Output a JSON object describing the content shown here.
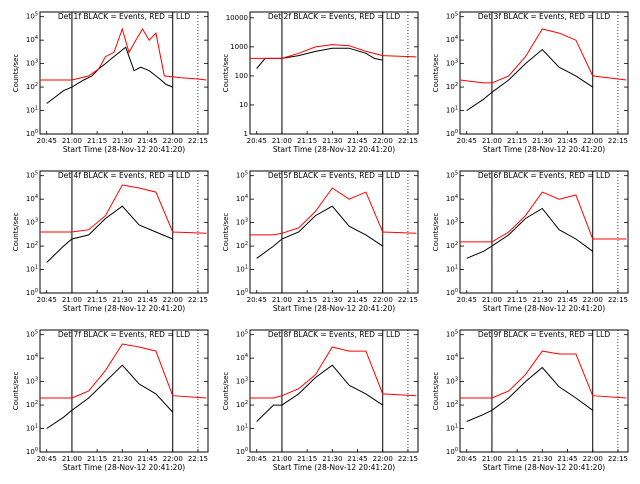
{
  "chart_data": [
    {
      "type": "line",
      "title": "Det 1f BLACK = Events, RED = LLD",
      "xlabel": "Start Time (28-Nov-12 20:41:20)",
      "ylabel": "Counts/sec",
      "x_ticks": [
        "20:45",
        "21:00",
        "21:15",
        "21:30",
        "21:45",
        "22:00",
        "22:15"
      ],
      "y_ticks": [
        "10^0",
        "10^1",
        "10^2",
        "10^3",
        "10^4",
        "10^5"
      ],
      "ylim_exp": [
        0,
        5.2
      ],
      "yscale": "log",
      "vlines_dotted": [
        "21:00",
        "22:15"
      ],
      "vlines_solid": [
        "21:00",
        "22:00"
      ],
      "series": [
        {
          "name": "Events",
          "color": "#000000",
          "x": [
            "20:45",
            "20:55",
            "21:00",
            "21:07",
            "21:12",
            "21:16",
            "21:20",
            "21:25",
            "21:32",
            "21:37",
            "21:41",
            "21:46",
            "21:50",
            "21:53",
            "21:56",
            "22:00"
          ],
          "y": [
            20,
            70,
            100,
            200,
            300,
            600,
            1000,
            2000,
            5000,
            500,
            700,
            500,
            300,
            200,
            130,
            100
          ]
        },
        {
          "name": "LLD",
          "color": "#ff0000",
          "x": [
            "20:41",
            "20:55",
            "21:00",
            "21:10",
            "21:16",
            "21:20",
            "21:25",
            "21:30",
            "21:34",
            "21:38",
            "21:42",
            "21:46",
            "21:50",
            "21:55",
            "22:05",
            "22:15",
            "22:20"
          ],
          "y": [
            200,
            200,
            200,
            300,
            600,
            2000,
            3000,
            30000,
            3000,
            10000,
            30000,
            10000,
            20000,
            300,
            250,
            220,
            200
          ]
        }
      ]
    },
    {
      "type": "line",
      "title": "Det 2f BLACK = Events, RED = LLD",
      "xlabel": "Start Time (28-Nov-12 20:41:20)",
      "ylabel": "Counts/sec",
      "x_ticks": [
        "20:45",
        "21:00",
        "21:15",
        "21:30",
        "21:45",
        "22:00",
        "22:15"
      ],
      "y_ticks": [
        "1",
        "10",
        "100",
        "1000",
        "10000"
      ],
      "ylim_exp": [
        0,
        4.2
      ],
      "yscale": "log",
      "vlines_dotted": [
        "21:00",
        "22:15"
      ],
      "vlines_solid": [
        "21:00",
        "22:00"
      ],
      "series": [
        {
          "name": "Events",
          "color": "#000000",
          "x": [
            "20:45",
            "20:50",
            "21:00",
            "21:10",
            "21:20",
            "21:30",
            "21:40",
            "21:50",
            "21:55",
            "22:00"
          ],
          "y": [
            180,
            400,
            400,
            500,
            700,
            900,
            900,
            600,
            400,
            350
          ]
        },
        {
          "name": "LLD",
          "color": "#ff0000",
          "x": [
            "20:41",
            "20:55",
            "21:00",
            "21:10",
            "21:20",
            "21:30",
            "21:40",
            "21:50",
            "22:00",
            "22:20"
          ],
          "y": [
            400,
            400,
            400,
            600,
            1000,
            1200,
            1100,
            700,
            500,
            450
          ]
        }
      ]
    },
    {
      "type": "line",
      "title": "Det 3f BLACK = Events, RED = LLD",
      "xlabel": "Start Time (28-Nov-12 20:41:20)",
      "ylabel": "Counts/sec",
      "x_ticks": [
        "20:45",
        "21:00",
        "21:15",
        "21:30",
        "21:45",
        "22:00",
        "22:15"
      ],
      "y_ticks": [
        "10^0",
        "10^1",
        "10^2",
        "10^3",
        "10^4",
        "10^5"
      ],
      "ylim_exp": [
        0,
        5.2
      ],
      "yscale": "log",
      "vlines_dotted": [
        "21:00",
        "22:15"
      ],
      "vlines_solid": [
        "21:00",
        "22:00"
      ],
      "series": [
        {
          "name": "Events",
          "color": "#000000",
          "x": [
            "20:45",
            "20:55",
            "21:00",
            "21:10",
            "21:20",
            "21:30",
            "21:40",
            "21:50",
            "22:00"
          ],
          "y": [
            10,
            30,
            60,
            200,
            1000,
            4000,
            700,
            300,
            100
          ]
        },
        {
          "name": "LLD",
          "color": "#ff0000",
          "x": [
            "20:41",
            "20:55",
            "21:00",
            "21:10",
            "21:20",
            "21:30",
            "21:40",
            "21:50",
            "22:00",
            "22:20"
          ],
          "y": [
            200,
            150,
            150,
            300,
            2000,
            30000,
            20000,
            10000,
            300,
            200
          ]
        }
      ]
    },
    {
      "type": "line",
      "title": "Det 4f BLACK = Events, RED = LLD",
      "xlabel": "Start Time (28-Nov-12 20:41:20)",
      "ylabel": "Counts/sec",
      "x_ticks": [
        "20:45",
        "21:00",
        "21:15",
        "21:30",
        "21:45",
        "22:00",
        "22:15"
      ],
      "y_ticks": [
        "10^0",
        "10^1",
        "10^2",
        "10^3",
        "10^4",
        "10^5"
      ],
      "ylim_exp": [
        0,
        5.2
      ],
      "yscale": "log",
      "vlines_dotted": [
        "21:00",
        "22:15"
      ],
      "vlines_solid": [
        "21:00",
        "22:00"
      ],
      "series": [
        {
          "name": "Events",
          "color": "#000000",
          "x": [
            "20:45",
            "20:55",
            "21:00",
            "21:10",
            "21:20",
            "21:30",
            "21:40",
            "21:50",
            "22:00"
          ],
          "y": [
            20,
            100,
            200,
            300,
            1500,
            5000,
            800,
            400,
            200
          ]
        },
        {
          "name": "LLD",
          "color": "#ff0000",
          "x": [
            "20:41",
            "20:55",
            "21:00",
            "21:10",
            "21:20",
            "21:30",
            "21:40",
            "21:50",
            "22:00",
            "22:20"
          ],
          "y": [
            400,
            400,
            400,
            500,
            2000,
            40000,
            30000,
            20000,
            400,
            350
          ]
        }
      ]
    },
    {
      "type": "line",
      "title": "Det 5f BLACK = Events, RED = LLD",
      "xlabel": "Start Time (28-Nov-12 20:41:20)",
      "ylabel": "Counts/sec",
      "x_ticks": [
        "20:45",
        "21:00",
        "21:15",
        "21:30",
        "21:45",
        "22:00",
        "22:15"
      ],
      "y_ticks": [
        "10^0",
        "10^1",
        "10^2",
        "10^3",
        "10^4",
        "10^5"
      ],
      "ylim_exp": [
        0,
        5.2
      ],
      "yscale": "log",
      "vlines_dotted": [
        "21:00",
        "22:15"
      ],
      "vlines_solid": [
        "21:00",
        "22:00"
      ],
      "series": [
        {
          "name": "Events",
          "color": "#000000",
          "x": [
            "20:45",
            "20:55",
            "21:00",
            "21:10",
            "21:20",
            "21:30",
            "21:40",
            "21:50",
            "22:00"
          ],
          "y": [
            30,
            100,
            200,
            400,
            2000,
            5000,
            700,
            300,
            100
          ]
        },
        {
          "name": "LLD",
          "color": "#ff0000",
          "x": [
            "20:41",
            "20:55",
            "21:00",
            "21:10",
            "21:20",
            "21:30",
            "21:40",
            "21:50",
            "22:00",
            "22:20"
          ],
          "y": [
            300,
            300,
            350,
            600,
            3000,
            30000,
            10000,
            20000,
            400,
            350
          ]
        }
      ]
    },
    {
      "type": "line",
      "title": "Det 6f BLACK = Events, RED = LLD",
      "xlabel": "Start Time (28-Nov-12 20:41:20)",
      "ylabel": "Counts/sec",
      "x_ticks": [
        "20:45",
        "21:00",
        "21:15",
        "21:30",
        "21:45",
        "22:00",
        "22:15"
      ],
      "y_ticks": [
        "10^0",
        "10^1",
        "10^2",
        "10^3",
        "10^4",
        "10^5"
      ],
      "ylim_exp": [
        0,
        5.2
      ],
      "yscale": "log",
      "vlines_dotted": [
        "21:00",
        "22:15"
      ],
      "vlines_solid": [
        "21:00",
        "22:00"
      ],
      "series": [
        {
          "name": "Events",
          "color": "#000000",
          "x": [
            "20:45",
            "20:55",
            "21:00",
            "21:10",
            "21:20",
            "21:30",
            "21:40",
            "21:50",
            "22:00"
          ],
          "y": [
            30,
            60,
            100,
            300,
            1500,
            4000,
            500,
            200,
            60
          ]
        },
        {
          "name": "LLD",
          "color": "#ff0000",
          "x": [
            "20:41",
            "20:55",
            "21:00",
            "21:10",
            "21:20",
            "21:30",
            "21:40",
            "21:50",
            "22:00",
            "22:20"
          ],
          "y": [
            150,
            150,
            150,
            400,
            2000,
            20000,
            10000,
            15000,
            200,
            200
          ]
        }
      ]
    },
    {
      "type": "line",
      "title": "Det 7f BLACK = Events, RED = LLD",
      "xlabel": "Start Time (28-Nov-12 20:41:20)",
      "ylabel": "Counts/sec",
      "x_ticks": [
        "20:45",
        "21:00",
        "21:15",
        "21:30",
        "21:45",
        "22:00",
        "22:15"
      ],
      "y_ticks": [
        "10^0",
        "10^1",
        "10^2",
        "10^3",
        "10^4",
        "10^5"
      ],
      "ylim_exp": [
        0,
        5.2
      ],
      "yscale": "log",
      "vlines_dotted": [
        "21:00",
        "22:15"
      ],
      "vlines_solid": [
        "21:00",
        "22:00"
      ],
      "series": [
        {
          "name": "Events",
          "color": "#000000",
          "x": [
            "20:45",
            "20:55",
            "21:00",
            "21:10",
            "21:20",
            "21:30",
            "21:40",
            "21:50",
            "22:00"
          ],
          "y": [
            10,
            30,
            60,
            200,
            1000,
            5000,
            800,
            300,
            50
          ]
        },
        {
          "name": "LLD",
          "color": "#ff0000",
          "x": [
            "20:41",
            "20:55",
            "21:00",
            "21:10",
            "21:20",
            "21:30",
            "21:40",
            "21:50",
            "22:00",
            "22:20"
          ],
          "y": [
            200,
            200,
            200,
            400,
            3000,
            40000,
            30000,
            20000,
            250,
            200
          ]
        }
      ]
    },
    {
      "type": "line",
      "title": "Det 8f BLACK = Events, RED = LLD",
      "xlabel": "Start Time (28-Nov-12 20:41:20)",
      "ylabel": "Counts/sec",
      "x_ticks": [
        "20:45",
        "21:00",
        "21:15",
        "21:30",
        "21:45",
        "22:00",
        "22:15"
      ],
      "y_ticks": [
        "10^0",
        "10^1",
        "10^2",
        "10^3",
        "10^4",
        "10^5"
      ],
      "ylim_exp": [
        0,
        5.2
      ],
      "yscale": "log",
      "vlines_dotted": [
        "21:00",
        "22:15"
      ],
      "vlines_solid": [
        "21:00",
        "22:00"
      ],
      "series": [
        {
          "name": "Events",
          "color": "#000000",
          "x": [
            "20:45",
            "20:55",
            "21:00",
            "21:10",
            "21:20",
            "21:30",
            "21:40",
            "21:50",
            "22:00"
          ],
          "y": [
            20,
            100,
            100,
            300,
            1500,
            5000,
            700,
            300,
            100
          ]
        },
        {
          "name": "LLD",
          "color": "#ff0000",
          "x": [
            "20:41",
            "20:55",
            "21:00",
            "21:10",
            "21:20",
            "21:30",
            "21:40",
            "21:50",
            "22:00",
            "22:20"
          ],
          "y": [
            200,
            200,
            250,
            500,
            2000,
            30000,
            20000,
            20000,
            300,
            250
          ]
        }
      ]
    },
    {
      "type": "line",
      "title": "Det 9f BLACK = Events, RED = LLD",
      "xlabel": "Start Time (28-Nov-12 20:41:20)",
      "ylabel": "Counts/sec",
      "x_ticks": [
        "20:45",
        "21:00",
        "21:15",
        "21:30",
        "21:45",
        "22:00",
        "22:15"
      ],
      "y_ticks": [
        "10^0",
        "10^1",
        "10^2",
        "10^3",
        "10^4",
        "10^5"
      ],
      "ylim_exp": [
        0,
        5.2
      ],
      "yscale": "log",
      "vlines_dotted": [
        "21:00",
        "22:15"
      ],
      "vlines_solid": [
        "21:00",
        "22:00"
      ],
      "series": [
        {
          "name": "Events",
          "color": "#000000",
          "x": [
            "20:45",
            "20:55",
            "21:00",
            "21:10",
            "21:20",
            "21:30",
            "21:40",
            "21:50",
            "22:00"
          ],
          "y": [
            20,
            40,
            60,
            200,
            1000,
            4000,
            600,
            200,
            60
          ]
        },
        {
          "name": "LLD",
          "color": "#ff0000",
          "x": [
            "20:41",
            "20:55",
            "21:00",
            "21:10",
            "21:20",
            "21:30",
            "21:40",
            "21:50",
            "22:00",
            "22:20"
          ],
          "y": [
            200,
            200,
            200,
            400,
            2000,
            20000,
            15000,
            15000,
            250,
            200
          ]
        }
      ]
    }
  ]
}
